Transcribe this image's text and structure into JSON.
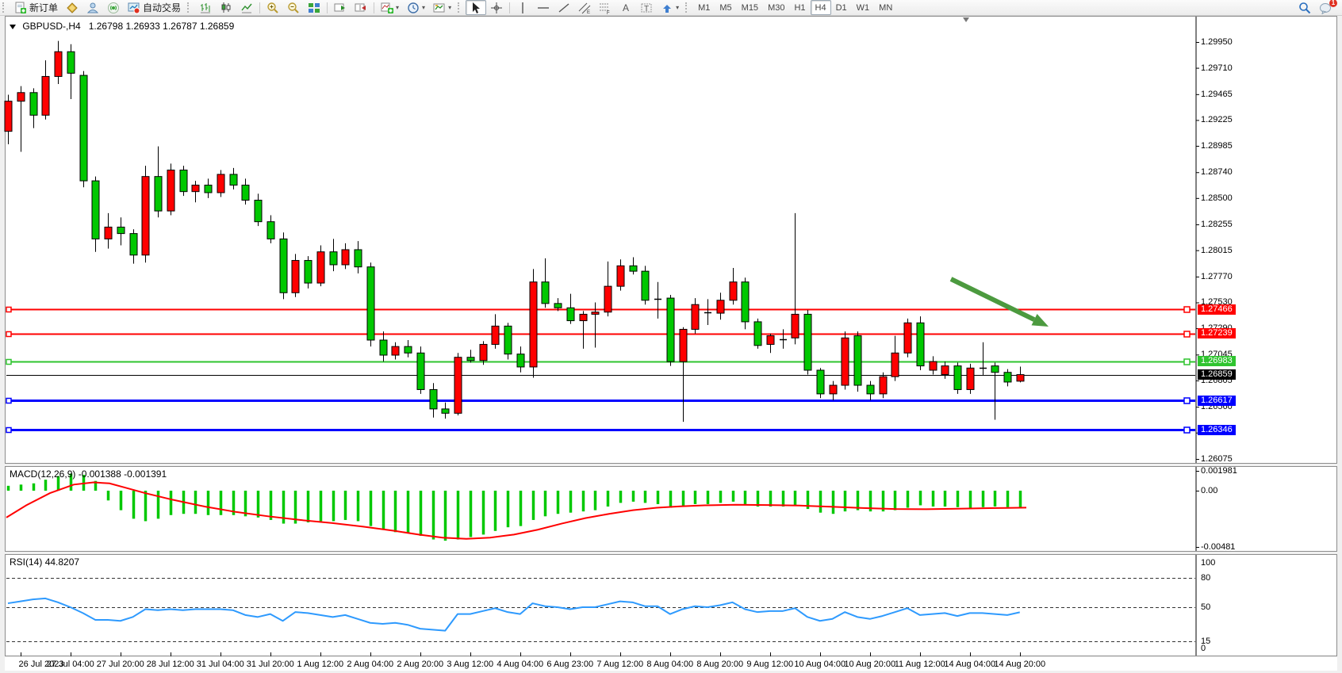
{
  "toolbar": {
    "new_order_label": "新订单",
    "autotrading_label": "自动交易",
    "icons_left": [
      "new-order",
      "market-watch",
      "navigator",
      "signals",
      "autotrading"
    ],
    "chart_tools": [
      "bar-chart",
      "candlestick-chart",
      "line-chart",
      "zoom-in",
      "zoom-out",
      "tile-windows",
      "auto-scroll",
      "chart-shift",
      "indicators",
      "periods",
      "templates",
      "cursor",
      "crosshair",
      "vertical-line",
      "horizontal-line",
      "trendline",
      "equidistant-channel",
      "fibonacci",
      "text",
      "text-label",
      "arrows"
    ],
    "timeframes": [
      "M1",
      "M5",
      "M15",
      "M30",
      "H1",
      "H4",
      "D1",
      "W1",
      "MN"
    ],
    "active_timeframe": "H4",
    "notification_badge": "1"
  },
  "chart": {
    "symbol_title": "GBPUSD-,H4",
    "ohlc_title": "1.26798 1.26933 1.26787 1.26859",
    "price_ticks": [
      "1.29950",
      "1.29710",
      "1.29465",
      "1.29225",
      "1.28985",
      "1.28740",
      "1.28500",
      "1.28255",
      "1.28015",
      "1.27770",
      "1.27530",
      "1.27290",
      "1.27045",
      "1.26805",
      "1.26560",
      "1.26320",
      "1.26075"
    ],
    "hlines": [
      {
        "price": 1.27466,
        "label": "1.27466",
        "color": "#FF0000",
        "width": 2
      },
      {
        "price": 1.27239,
        "label": "1.27239",
        "color": "#FF0000",
        "width": 2
      },
      {
        "price": 1.26983,
        "label": "1.26983",
        "color": "#2FC42F",
        "width": 2
      },
      {
        "price": 1.26859,
        "label": "1.26859",
        "color": "#000000",
        "width": 1
      },
      {
        "price": 1.26617,
        "label": "1.26617",
        "color": "#0000FF",
        "width": 3
      },
      {
        "price": 1.26346,
        "label": "1.26346",
        "color": "#0000FF",
        "width": 3
      }
    ]
  },
  "chart_data": {
    "type": "candlestick",
    "title": "GBPUSD-,H4",
    "symbol": "GBPUSD",
    "timeframe": "H4",
    "up_color": "#FF0000",
    "down_color": "#00C800",
    "price_axis_range": {
      "top": 1.2995,
      "bottom": 1.26075
    },
    "candles": [
      [
        1.2912,
        1.2946,
        1.29,
        1.294
      ],
      [
        1.294,
        1.2954,
        1.2893,
        1.2948
      ],
      [
        1.2948,
        1.2952,
        1.2915,
        1.2927
      ],
      [
        1.2927,
        1.2978,
        1.2923,
        1.2963
      ],
      [
        1.2963,
        1.2996,
        1.2956,
        1.2986
      ],
      [
        1.2986,
        1.2993,
        1.2942,
        1.2966
      ],
      [
        1.2964,
        1.2968,
        1.286,
        1.2866
      ],
      [
        1.2866,
        1.287,
        1.28,
        1.2812
      ],
      [
        1.2812,
        1.2836,
        1.2803,
        1.2823
      ],
      [
        1.2823,
        1.2832,
        1.2806,
        1.2817
      ],
      [
        1.2817,
        1.2821,
        1.2789,
        1.2797
      ],
      [
        1.2797,
        1.288,
        1.279,
        1.287
      ],
      [
        1.287,
        1.2898,
        1.2832,
        1.2838
      ],
      [
        1.2838,
        1.2882,
        1.2834,
        1.2876
      ],
      [
        1.2876,
        1.288,
        1.2852,
        1.2856
      ],
      [
        1.2856,
        1.2866,
        1.2846,
        1.2862
      ],
      [
        1.2862,
        1.2868,
        1.285,
        1.2855
      ],
      [
        1.2855,
        1.2876,
        1.2851,
        1.2872
      ],
      [
        1.2872,
        1.2878,
        1.2858,
        1.2862
      ],
      [
        1.2862,
        1.2868,
        1.2844,
        1.2848
      ],
      [
        1.2848,
        1.2854,
        1.2824,
        1.2828
      ],
      [
        1.2828,
        1.2834,
        1.2808,
        1.2812
      ],
      [
        1.2812,
        1.2818,
        1.2756,
        1.2762
      ],
      [
        1.2762,
        1.2798,
        1.2758,
        1.2792
      ],
      [
        1.2792,
        1.2796,
        1.2766,
        1.2771
      ],
      [
        1.2771,
        1.2806,
        1.2768,
        1.28
      ],
      [
        1.28,
        1.2812,
        1.2782,
        1.2788
      ],
      [
        1.2788,
        1.2808,
        1.2784,
        1.2802
      ],
      [
        1.2802,
        1.281,
        1.278,
        1.2786
      ],
      [
        1.2786,
        1.279,
        1.2712,
        1.2718
      ],
      [
        1.2718,
        1.2726,
        1.2698,
        1.2704
      ],
      [
        1.2704,
        1.2716,
        1.27,
        1.2712
      ],
      [
        1.2712,
        1.2718,
        1.2702,
        1.2706
      ],
      [
        1.2706,
        1.2712,
        1.2668,
        1.2672
      ],
      [
        1.2672,
        1.2678,
        1.2646,
        1.2654
      ],
      [
        1.2654,
        1.266,
        1.2645,
        1.265
      ],
      [
        1.265,
        1.2706,
        1.2648,
        1.2702
      ],
      [
        1.2702,
        1.2709,
        1.2697,
        1.2699
      ],
      [
        1.2699,
        1.2717,
        1.2695,
        1.2714
      ],
      [
        1.2714,
        1.2742,
        1.271,
        1.2731
      ],
      [
        1.2731,
        1.2734,
        1.27,
        1.2705
      ],
      [
        1.2705,
        1.2712,
        1.2688,
        1.2693
      ],
      [
        1.2693,
        1.2784,
        1.2683,
        1.2772
      ],
      [
        1.2772,
        1.2794,
        1.2748,
        1.2752
      ],
      [
        1.2752,
        1.2757,
        1.2745,
        1.2748
      ],
      [
        1.2748,
        1.2761,
        1.2733,
        1.2736
      ],
      [
        1.2736,
        1.2745,
        1.271,
        1.2742
      ],
      [
        1.2742,
        1.2753,
        1.2711,
        1.2744
      ],
      [
        1.2744,
        1.2791,
        1.274,
        1.2768
      ],
      [
        1.2768,
        1.2793,
        1.2764,
        1.2787
      ],
      [
        1.2787,
        1.2795,
        1.2779,
        1.2782
      ],
      [
        1.2782,
        1.2787,
        1.2751,
        1.2755
      ],
      [
        1.2756,
        1.2772,
        1.2738,
        1.2756
      ],
      [
        1.2757,
        1.276,
        1.2694,
        1.2698
      ],
      [
        1.2698,
        1.273,
        1.2642,
        1.2728
      ],
      [
        1.2728,
        1.2757,
        1.2724,
        1.2751
      ],
      [
        1.2744,
        1.2756,
        1.2732,
        1.2744
      ],
      [
        1.2743,
        1.2762,
        1.2737,
        1.2755
      ],
      [
        1.2755,
        1.2785,
        1.2751,
        1.2772
      ],
      [
        1.2772,
        1.2776,
        1.2728,
        1.2735
      ],
      [
        1.2735,
        1.2738,
        1.271,
        1.2713
      ],
      [
        1.2714,
        1.2724,
        1.2706,
        1.2722
      ],
      [
        1.2719,
        1.2728,
        1.271,
        1.2719
      ],
      [
        1.272,
        1.2836,
        1.2714,
        1.2742
      ],
      [
        1.2742,
        1.2746,
        1.2686,
        1.269
      ],
      [
        1.269,
        1.2692,
        1.2664,
        1.2668
      ],
      [
        1.2668,
        1.268,
        1.2662,
        1.2676
      ],
      [
        1.2676,
        1.2726,
        1.2672,
        1.272
      ],
      [
        1.2722,
        1.2726,
        1.267,
        1.2676
      ],
      [
        1.2676,
        1.268,
        1.2662,
        1.2668
      ],
      [
        1.2668,
        1.2688,
        1.2664,
        1.2684
      ],
      [
        1.2684,
        1.2722,
        1.268,
        1.2706
      ],
      [
        1.2706,
        1.2738,
        1.2702,
        1.2734
      ],
      [
        1.2734,
        1.274,
        1.269,
        1.2694
      ],
      [
        1.269,
        1.2703,
        1.2686,
        1.2698
      ],
      [
        1.2686,
        1.2698,
        1.2682,
        1.2694
      ],
      [
        1.2694,
        1.2697,
        1.2668,
        1.2672
      ],
      [
        1.2672,
        1.2696,
        1.2668,
        1.2692
      ],
      [
        1.2692,
        1.2716,
        1.2685,
        1.2692
      ],
      [
        1.2694,
        1.2697,
        1.2644,
        1.2688
      ],
      [
        1.2688,
        1.2691,
        1.2675,
        1.2679
      ],
      [
        1.26798,
        1.26933,
        1.26787,
        1.26859
      ]
    ],
    "time_labels": [
      "26 Jul 2023",
      "27 Jul 04:00",
      "27 Jul 20:00",
      "28 Jul 12:00",
      "31 Jul 04:00",
      "31 Jul 20:00",
      "1 Aug 12:00",
      "2 Aug 04:00",
      "2 Aug 20:00",
      "3 Aug 12:00",
      "4 Aug 04:00",
      "6 Aug 23:00",
      "7 Aug 12:00",
      "8 Aug 04:00",
      "8 Aug 20:00",
      "9 Aug 12:00",
      "10 Aug 04:00",
      "10 Aug 20:00",
      "11 Aug 12:00",
      "14 Aug 04:00",
      "14 Aug 20:00"
    ],
    "macd": {
      "label": "MACD(12,26,9)",
      "current_values": "-0.001388 -0.001391",
      "axis_labels": [
        "0.001981",
        "0.00",
        "-0.00481"
      ],
      "axis_values": [
        0.001981,
        0.0,
        -0.00481
      ],
      "histogram_color": "#00C800",
      "signal_color": "#FF0000",
      "histogram": [
        0.4,
        0.5,
        0.6,
        0.9,
        1.2,
        1.4,
        1.3,
        0.8,
        -0.8,
        -1.6,
        -2.3,
        -2.5,
        -2.3,
        -2.0,
        -1.9,
        -1.9,
        -2.0,
        -2.0,
        -2.0,
        -2.1,
        -2.2,
        -2.4,
        -2.7,
        -2.7,
        -2.6,
        -2.5,
        -2.5,
        -2.4,
        -2.5,
        -2.9,
        -3.2,
        -3.4,
        -3.5,
        -3.7,
        -4.0,
        -4.1,
        -4.0,
        -3.8,
        -3.6,
        -3.3,
        -3.0,
        -2.9,
        -2.4,
        -2.1,
        -1.9,
        -1.8,
        -1.7,
        -1.6,
        -1.3,
        -1.0,
        -0.9,
        -1.0,
        -1.1,
        -1.4,
        -1.3,
        -1.1,
        -1.1,
        -1.0,
        -0.9,
        -1.1,
        -1.3,
        -1.3,
        -1.3,
        -1.2,
        -1.5,
        -1.8,
        -1.9,
        -1.7,
        -1.6,
        -1.7,
        -1.7,
        -1.6,
        -1.4,
        -1.2,
        -1.3,
        -1.3,
        -1.35,
        -1.4,
        -1.35,
        -1.3,
        -1.35,
        -1.388
      ],
      "signal_points": [
        [
          0,
          -2.2
        ],
        [
          25,
          -1.2
        ],
        [
          55,
          -0.2
        ],
        [
          85,
          0.5
        ],
        [
          110,
          0.68
        ],
        [
          130,
          0.6
        ],
        [
          150,
          0.25
        ],
        [
          175,
          -0.2
        ],
        [
          210,
          -0.75
        ],
        [
          250,
          -1.3
        ],
        [
          290,
          -1.75
        ],
        [
          330,
          -2.1
        ],
        [
          370,
          -2.4
        ],
        [
          410,
          -2.65
        ],
        [
          450,
          -2.95
        ],
        [
          490,
          -3.3
        ],
        [
          520,
          -3.6
        ],
        [
          550,
          -3.85
        ],
        [
          580,
          -3.95
        ],
        [
          610,
          -3.85
        ],
        [
          640,
          -3.6
        ],
        [
          670,
          -3.2
        ],
        [
          700,
          -2.7
        ],
        [
          730,
          -2.25
        ],
        [
          760,
          -1.9
        ],
        [
          790,
          -1.6
        ],
        [
          820,
          -1.4
        ],
        [
          850,
          -1.28
        ],
        [
          880,
          -1.2
        ],
        [
          920,
          -1.15
        ],
        [
          960,
          -1.18
        ],
        [
          1000,
          -1.22
        ],
        [
          1040,
          -1.32
        ],
        [
          1080,
          -1.42
        ],
        [
          1120,
          -1.5
        ],
        [
          1160,
          -1.52
        ],
        [
          1200,
          -1.48
        ],
        [
          1240,
          -1.43
        ],
        [
          1286,
          -1.391
        ]
      ]
    },
    "rsi": {
      "label": "RSI(14)",
      "current_value": "44.8207",
      "axis_labels": [
        "100",
        "80",
        "50",
        "15",
        "0"
      ],
      "levels": [
        80,
        50,
        15
      ],
      "line_color": "#2E9AFE",
      "values": [
        54,
        56,
        58,
        59,
        55,
        50,
        44,
        37,
        37,
        36,
        40,
        48,
        47,
        48,
        47,
        48,
        48,
        48,
        47,
        42,
        40,
        43,
        36,
        45,
        44,
        42,
        40,
        42,
        38,
        34,
        33,
        34,
        32,
        28,
        27,
        26,
        43,
        43,
        46,
        49,
        45,
        43,
        54,
        51,
        50,
        48,
        50,
        50,
        53,
        56,
        55,
        51,
        51,
        43,
        48,
        51,
        50,
        52,
        55,
        48,
        45,
        46,
        46,
        49,
        40,
        36,
        38,
        45,
        40,
        38,
        41,
        45,
        49,
        42,
        43,
        44,
        41,
        44,
        44,
        43,
        42,
        44.8
      ]
    },
    "annotation_arrow": {
      "from": [
        1199,
        352
      ],
      "to": [
        1322,
        412
      ],
      "color": "#4C9A3F"
    }
  }
}
